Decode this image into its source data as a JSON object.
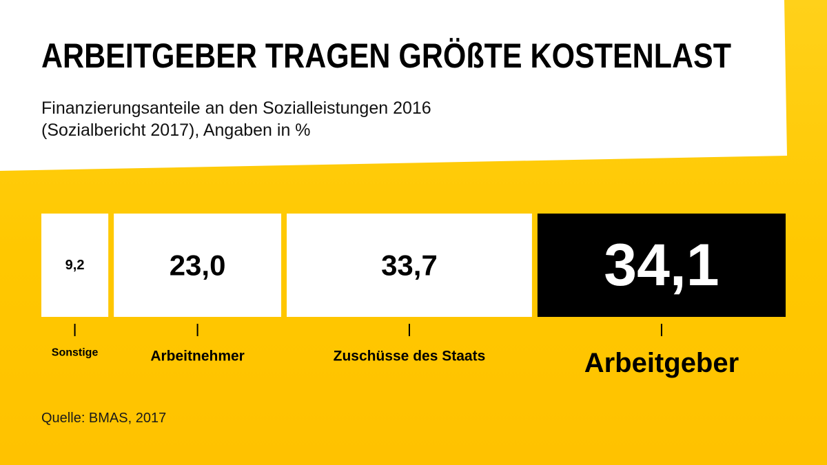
{
  "title": "ARBEITGEBER TRAGEN GRÖßTE KOSTENLAST",
  "subtitle_lines": [
    "Finanzierungsanteile an den Sozialleistungen 2016",
    "(Sozialbericht 2017), Angaben in %"
  ],
  "source": "Quelle: BMAS, 2017",
  "colors": {
    "background": "#ffc800",
    "segment": "#ffffff",
    "highlight": "#000000",
    "highlight_text": "#ffffff",
    "text": "#000000"
  },
  "chart_data": {
    "type": "bar",
    "orientation": "horizontal-stacked",
    "categories": [
      "Sonstige",
      "Arbeitnehmer",
      "Zuschüsse des Staats",
      "Arbeitgeber"
    ],
    "values": [
      9.2,
      23.0,
      33.7,
      34.1
    ],
    "value_labels": [
      "9,2",
      "23,0",
      "33,7",
      "34,1"
    ],
    "highlight": "Arbeitgeber",
    "xlim": [
      0,
      100
    ],
    "grid": false,
    "legend": "none"
  }
}
